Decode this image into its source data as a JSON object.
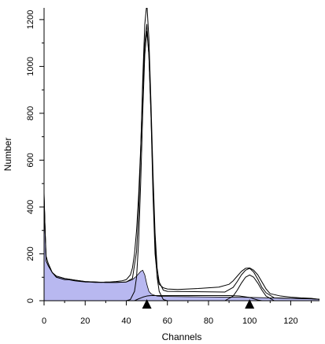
{
  "chart_data": {
    "type": "area",
    "xlabel": "Channels",
    "ylabel": "Number",
    "xlim": [
      0,
      134
    ],
    "ylim": [
      0,
      1250
    ],
    "x_ticks": [
      0,
      20,
      40,
      60,
      80,
      100,
      120
    ],
    "y_ticks": [
      0,
      200,
      400,
      600,
      800,
      1000,
      1200
    ],
    "grid": false,
    "legend": "none",
    "markers": [
      {
        "name": "G1 peak marker",
        "x": 50
      },
      {
        "name": "G2 peak marker",
        "x": 100
      }
    ],
    "series": [
      {
        "role": "measured histogram",
        "style": "line",
        "color": "#000000",
        "x": [
          0,
          0.5,
          1,
          2,
          3,
          4,
          5,
          6,
          8,
          10,
          12,
          15,
          18,
          20,
          22,
          25,
          28,
          30,
          32,
          35,
          38,
          40,
          42,
          43,
          44,
          45,
          46,
          47,
          48,
          49,
          50,
          51,
          52,
          53,
          54,
          55,
          56,
          58,
          60,
          65,
          70,
          75,
          80,
          85,
          90,
          92,
          94,
          96,
          98,
          100,
          102,
          104,
          106,
          108,
          110,
          115,
          120,
          125,
          130,
          132,
          134
        ],
        "y": [
          460,
          300,
          190,
          160,
          140,
          120,
          110,
          100,
          95,
          90,
          90,
          85,
          82,
          80,
          80,
          78,
          78,
          80,
          80,
          82,
          85,
          90,
          110,
          140,
          200,
          300,
          450,
          650,
          900,
          1100,
          1180,
          1050,
          800,
          450,
          200,
          110,
          70,
          55,
          50,
          48,
          50,
          52,
          55,
          58,
          70,
          85,
          105,
          125,
          138,
          140,
          130,
          110,
          80,
          50,
          30,
          20,
          15,
          12,
          10,
          8,
          6
        ]
      },
      {
        "role": "debris background",
        "style": "filled",
        "color": "#b8b8f0",
        "x": [
          0,
          1,
          2,
          4,
          6,
          10,
          15,
          20,
          25,
          30,
          35,
          40,
          43,
          45,
          46,
          47,
          48,
          49,
          50,
          51,
          52,
          53,
          55,
          58,
          60,
          70,
          80,
          90,
          100,
          110,
          120,
          130,
          134
        ],
        "y": [
          450,
          170,
          150,
          120,
          105,
          95,
          88,
          82,
          80,
          78,
          78,
          80,
          90,
          105,
          115,
          125,
          130,
          110,
          70,
          40,
          30,
          25,
          20,
          18,
          18,
          17,
          16,
          15,
          14,
          12,
          10,
          8,
          6
        ]
      },
      {
        "role": "G1 fit",
        "style": "line",
        "color": "#000000",
        "x": [
          40,
          42,
          44,
          45,
          46,
          47,
          48,
          49,
          50,
          51,
          52,
          53,
          54,
          55,
          56,
          58,
          60
        ],
        "y": [
          0,
          5,
          40,
          100,
          250,
          500,
          800,
          1050,
          1150,
          1050,
          800,
          500,
          250,
          100,
          40,
          5,
          0
        ]
      },
      {
        "role": "G2 fit",
        "style": "line",
        "color": "#000000",
        "x": [
          88,
          92,
          94,
          96,
          98,
          100,
          102,
          104,
          106,
          108,
          112
        ],
        "y": [
          0,
          20,
          45,
          75,
          100,
          110,
          100,
          75,
          45,
          20,
          0
        ]
      },
      {
        "role": "S phase fit",
        "style": "line",
        "color": "#000000",
        "x": [
          44,
          46,
          48,
          50,
          52,
          55,
          60,
          70,
          80,
          90,
          95,
          100,
          102,
          104,
          106
        ],
        "y": [
          0,
          8,
          15,
          20,
          22,
          22,
          22,
          22,
          22,
          22,
          20,
          14,
          8,
          3,
          0
        ]
      },
      {
        "role": "sum of fits",
        "style": "line",
        "color": "#000000",
        "x": [
          0,
          0.5,
          1,
          2,
          4,
          6,
          10,
          15,
          20,
          25,
          30,
          35,
          40,
          43,
          45,
          46,
          47,
          48,
          49,
          50,
          51,
          52,
          53,
          54,
          55,
          56,
          58,
          60,
          70,
          80,
          88,
          92,
          94,
          96,
          98,
          100,
          102,
          104,
          106,
          108,
          112,
          120,
          130,
          134
        ],
        "y": [
          450,
          300,
          170,
          150,
          120,
          105,
          95,
          88,
          82,
          80,
          78,
          78,
          80,
          95,
          210,
          375,
          640,
          945,
          1180,
          1270,
          1120,
          850,
          545,
          290,
          140,
          80,
          45,
          40,
          39,
          38,
          37,
          57,
          82,
          110,
          130,
          138,
          122,
          92,
          57,
          34,
          12,
          10,
          8,
          6
        ]
      }
    ]
  }
}
